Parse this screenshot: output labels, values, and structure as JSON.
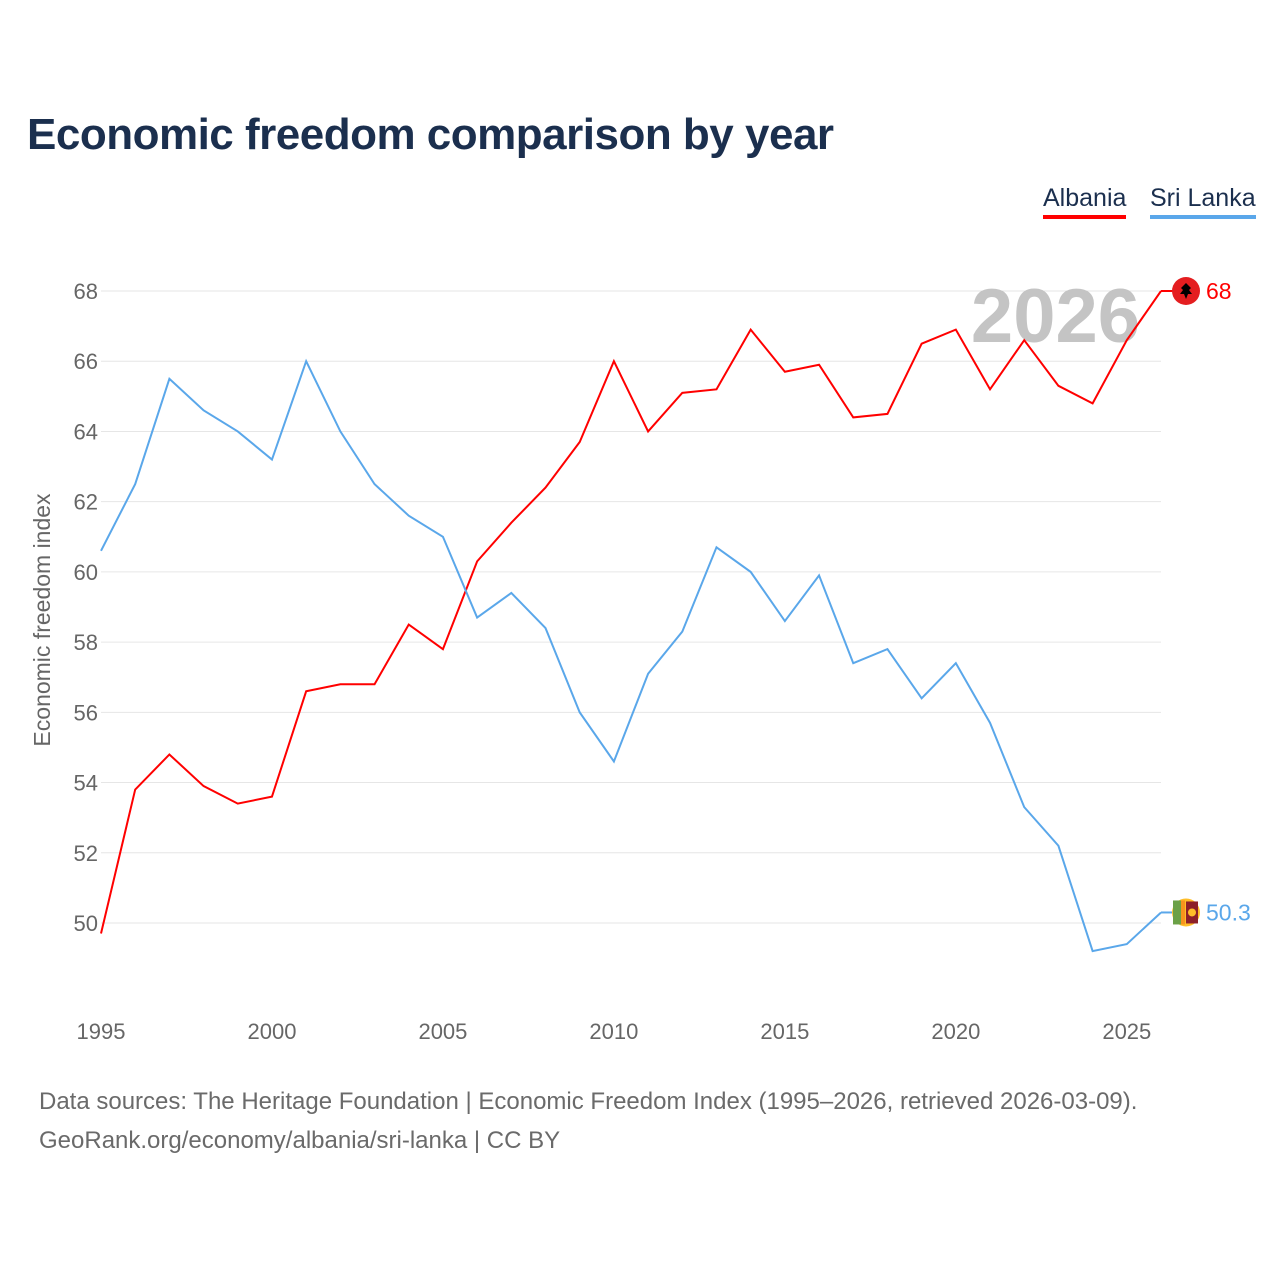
{
  "chart_data": {
    "type": "line",
    "title": "Economic freedom comparison by year",
    "xlabel": "",
    "ylabel": "Economic freedom index",
    "x": [
      1995,
      1996,
      1997,
      1998,
      1999,
      2000,
      2001,
      2002,
      2003,
      2004,
      2005,
      2006,
      2007,
      2008,
      2009,
      2010,
      2011,
      2012,
      2013,
      2014,
      2015,
      2016,
      2017,
      2018,
      2019,
      2020,
      2021,
      2022,
      2023,
      2024,
      2025,
      2026
    ],
    "xticks": [
      "1995",
      "2000",
      "2005",
      "2010",
      "2015",
      "2020",
      "2025"
    ],
    "yticks": [
      "50",
      "52",
      "54",
      "56",
      "58",
      "60",
      "62",
      "64",
      "66",
      "68"
    ],
    "ylim": [
      47.5,
      69
    ],
    "grid": true,
    "legend_position": "top-right",
    "year_label": "2026",
    "series": [
      {
        "name": "Albania",
        "color": "#ff0000",
        "end_label": "68",
        "values": [
          49.7,
          53.8,
          54.8,
          53.9,
          53.4,
          53.6,
          56.6,
          56.8,
          56.8,
          58.5,
          57.8,
          60.3,
          61.4,
          62.4,
          63.7,
          66.0,
          64.0,
          65.1,
          65.2,
          66.9,
          65.7,
          65.9,
          64.4,
          64.5,
          66.5,
          66.9,
          65.2,
          66.6,
          65.3,
          64.8,
          66.6,
          68.0
        ]
      },
      {
        "name": "Sri Lanka",
        "color": "#5aa7ea",
        "end_label": "50.3",
        "values": [
          60.6,
          62.5,
          65.5,
          64.6,
          64.0,
          63.2,
          66.0,
          64.0,
          62.5,
          61.6,
          61.0,
          58.7,
          59.4,
          58.4,
          56.0,
          54.6,
          57.1,
          58.3,
          60.7,
          60.0,
          58.6,
          59.9,
          57.4,
          57.8,
          56.4,
          57.4,
          55.7,
          53.3,
          52.2,
          49.2,
          49.4,
          50.3
        ]
      }
    ]
  },
  "footer": {
    "line1": "Data sources: The Heritage Foundation | Economic Freedom Index (1995–2026, retrieved 2026-03-09).",
    "line2": "GeoRank.org/economy/albania/sri-lanka | CC BY"
  }
}
